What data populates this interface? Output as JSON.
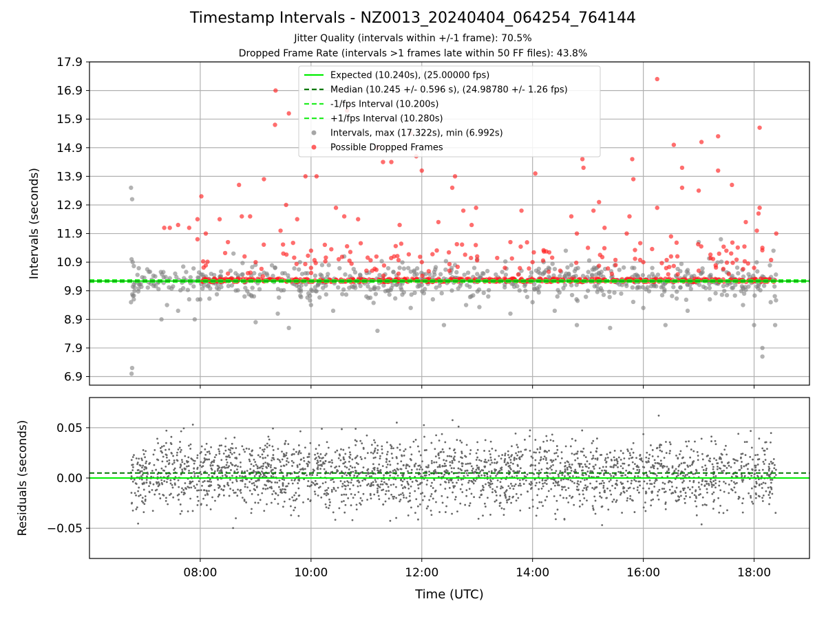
{
  "chart_data": [
    {
      "type": "scatter",
      "title": "Timestamp Intervals - NZ0013_20240404_064254_764144",
      "subtitle_lines": [
        "Jitter Quality (intervals within +/-1 frame): 70.5%",
        "Dropped Frame Rate (intervals >1 frames late within 50 FF files): 43.8%"
      ],
      "ylabel": "Intervals (seconds)",
      "xlabel": "",
      "ylim": [
        6.6,
        17.9
      ],
      "yticks": [
        "17.9",
        "16.9",
        "15.9",
        "14.9",
        "13.9",
        "12.9",
        "11.9",
        "10.9",
        "9.9",
        "8.9",
        "7.9",
        "6.9"
      ],
      "grid": true,
      "legend_position": "top-center",
      "reference_lines": [
        {
          "name": "Expected (10.240s), (25.00000 fps)",
          "y": 10.24,
          "style": "solid",
          "color": "#00ee00"
        },
        {
          "name": "Median (10.245 +/- 0.596 s), (24.98780 +/- 1.26 fps)",
          "y": 10.245,
          "style": "dashed",
          "color": "#007700"
        },
        {
          "name": "-1/fps Interval (10.200s)",
          "y": 10.2,
          "style": "dashed",
          "color": "#22ee22"
        },
        {
          "name": "+1/fps Interval (10.280s)",
          "y": 10.28,
          "style": "dashed",
          "color": "#22ee22"
        }
      ],
      "series": [
        {
          "name": "Intervals, max (17.322s), min (6.992s)",
          "color": "#808080",
          "marker": "circle",
          "max": 17.322,
          "min": 6.992,
          "points": [
            [
              6.75,
              13.5
            ],
            [
              6.77,
              13.1
            ],
            [
              6.76,
              11.0
            ],
            [
              6.78,
              10.9
            ],
            [
              6.8,
              9.6
            ],
            [
              6.75,
              9.5
            ],
            [
              6.77,
              7.2
            ],
            [
              6.76,
              7.0
            ],
            [
              7.3,
              8.9
            ],
            [
              7.4,
              9.4
            ],
            [
              7.6,
              9.2
            ],
            [
              7.8,
              9.6
            ],
            [
              7.9,
              8.9
            ],
            [
              8.0,
              9.6
            ],
            [
              8.1,
              10.4
            ],
            [
              8.3,
              10.0
            ],
            [
              8.6,
              11.2
            ],
            [
              8.8,
              9.7
            ],
            [
              9.0,
              8.8
            ],
            [
              9.2,
              10.5
            ],
            [
              9.4,
              9.1
            ],
            [
              9.6,
              8.6
            ],
            [
              9.8,
              10.9
            ],
            [
              10.0,
              9.4
            ],
            [
              10.2,
              10.8
            ],
            [
              10.4,
              9.2
            ],
            [
              10.6,
              11.1
            ],
            [
              10.8,
              10.0
            ],
            [
              11.0,
              9.7
            ],
            [
              11.2,
              8.5
            ],
            [
              11.4,
              9.9
            ],
            [
              11.6,
              10.7
            ],
            [
              11.8,
              9.3
            ],
            [
              12.0,
              10.1
            ],
            [
              12.2,
              9.6
            ],
            [
              12.4,
              8.7
            ],
            [
              12.6,
              10.8
            ],
            [
              12.8,
              9.4
            ],
            [
              13.0,
              11.0
            ],
            [
              13.2,
              9.7
            ],
            [
              13.4,
              10.3
            ],
            [
              13.6,
              9.1
            ],
            [
              13.8,
              10.6
            ],
            [
              14.0,
              9.5
            ],
            [
              14.2,
              10.9
            ],
            [
              14.4,
              9.2
            ],
            [
              14.6,
              11.3
            ],
            [
              14.8,
              8.7
            ],
            [
              15.0,
              9.9
            ],
            [
              15.2,
              10.5
            ],
            [
              15.4,
              8.6
            ],
            [
              15.6,
              9.8
            ],
            [
              15.8,
              10.7
            ],
            [
              16.0,
              9.3
            ],
            [
              16.2,
              10.1
            ],
            [
              16.4,
              8.7
            ],
            [
              16.6,
              10.4
            ],
            [
              16.8,
              9.2
            ],
            [
              17.0,
              11.6
            ],
            [
              17.2,
              9.6
            ],
            [
              17.4,
              11.7
            ],
            [
              17.6,
              10.0
            ],
            [
              17.8,
              9.4
            ],
            [
              18.0,
              8.7
            ],
            [
              18.15,
              7.9
            ],
            [
              18.15,
              7.6
            ],
            [
              18.3,
              9.5
            ],
            [
              18.38,
              8.7
            ],
            [
              18.35,
              11.3
            ]
          ]
        },
        {
          "name": "Possible Dropped Frames",
          "color": "#ff2020",
          "marker": "circle",
          "points": [
            [
              7.35,
              12.1
            ],
            [
              7.45,
              12.1
            ],
            [
              7.6,
              12.2
            ],
            [
              7.8,
              12.1
            ],
            [
              7.95,
              12.4
            ],
            [
              8.02,
              13.2
            ],
            [
              7.95,
              11.7
            ],
            [
              8.1,
              11.9
            ],
            [
              8.35,
              12.4
            ],
            [
              8.5,
              11.6
            ],
            [
              8.7,
              13.6
            ],
            [
              8.75,
              12.5
            ],
            [
              8.9,
              12.5
            ],
            [
              8.8,
              11.1
            ],
            [
              9.15,
              13.8
            ],
            [
              9.35,
              15.7
            ],
            [
              9.36,
              16.9
            ],
            [
              9.45,
              12.0
            ],
            [
              9.55,
              12.9
            ],
            [
              9.6,
              16.1
            ],
            [
              9.75,
              12.4
            ],
            [
              9.9,
              13.9
            ],
            [
              10.1,
              13.9
            ],
            [
              10.45,
              12.8
            ],
            [
              10.6,
              12.5
            ],
            [
              10.65,
              16.2
            ],
            [
              10.85,
              12.4
            ],
            [
              11.2,
              14.9
            ],
            [
              11.3,
              14.4
            ],
            [
              11.45,
              14.4
            ],
            [
              11.6,
              12.2
            ],
            [
              11.8,
              15.4
            ],
            [
              11.9,
              14.6
            ],
            [
              12.0,
              14.1
            ],
            [
              12.3,
              12.3
            ],
            [
              12.6,
              13.9
            ],
            [
              12.55,
              13.5
            ],
            [
              12.75,
              12.7
            ],
            [
              12.9,
              12.2
            ],
            [
              12.98,
              12.8
            ],
            [
              13.6,
              11.6
            ],
            [
              13.8,
              12.7
            ],
            [
              14.05,
              14.0
            ],
            [
              14.7,
              12.5
            ],
            [
              14.8,
              11.9
            ],
            [
              14.9,
              14.5
            ],
            [
              14.92,
              14.2
            ],
            [
              15.1,
              12.7
            ],
            [
              15.2,
              13.0
            ],
            [
              15.3,
              12.1
            ],
            [
              15.7,
              11.9
            ],
            [
              15.75,
              12.5
            ],
            [
              15.8,
              14.5
            ],
            [
              15.82,
              13.8
            ],
            [
              16.25,
              17.3
            ],
            [
              16.25,
              12.8
            ],
            [
              16.5,
              11.8
            ],
            [
              16.55,
              15.0
            ],
            [
              16.7,
              14.2
            ],
            [
              16.7,
              13.5
            ],
            [
              17.05,
              15.1
            ],
            [
              17.0,
              13.4
            ],
            [
              17.35,
              15.3
            ],
            [
              17.35,
              14.1
            ],
            [
              17.6,
              13.6
            ],
            [
              17.85,
              12.3
            ],
            [
              18.1,
              15.6
            ],
            [
              18.1,
              12.8
            ],
            [
              18.08,
              12.6
            ],
            [
              18.05,
              12.0
            ],
            [
              18.15,
              11.4
            ],
            [
              18.4,
              11.9
            ],
            [
              8.5,
              10.5
            ],
            [
              9.0,
              10.9
            ],
            [
              9.5,
              11.2
            ],
            [
              10.0,
              10.7
            ],
            [
              10.5,
              11.0
            ],
            [
              11.0,
              10.6
            ],
            [
              11.5,
              11.1
            ],
            [
              12.0,
              10.9
            ],
            [
              12.5,
              10.6
            ],
            [
              13.0,
              11.1
            ],
            [
              13.5,
              10.7
            ],
            [
              14.0,
              10.9
            ],
            [
              14.5,
              10.6
            ],
            [
              15.0,
              11.4
            ],
            [
              15.5,
              10.8
            ],
            [
              16.0,
              10.9
            ],
            [
              16.5,
              11.1
            ],
            [
              17.0,
              10.6
            ],
            [
              17.5,
              11.3
            ],
            [
              18.0,
              10.7
            ]
          ]
        }
      ]
    },
    {
      "type": "scatter",
      "title": "",
      "xlabel": "Time (UTC)",
      "ylabel": "Residuals (seconds)",
      "ylim": [
        -0.08,
        0.08
      ],
      "yticks": [
        "0.05",
        "0.00",
        "−0.05"
      ],
      "xlim_hours": [
        6.0,
        19.0
      ],
      "xticks": [
        "08:00",
        "10:00",
        "12:00",
        "14:00",
        "16:00",
        "18:00"
      ],
      "grid": true,
      "reference_lines": [
        {
          "name": "Expected",
          "y": 0.0,
          "style": "solid",
          "color": "#00ee00"
        },
        {
          "name": "Median",
          "y": 0.005,
          "style": "dashed",
          "color": "#007700"
        }
      ],
      "series": [
        {
          "name": "",
          "color": "#777777",
          "marker": "dot",
          "x_range_hours": [
            6.75,
            18.4
          ],
          "approx_spread": 0.05
        }
      ]
    }
  ]
}
